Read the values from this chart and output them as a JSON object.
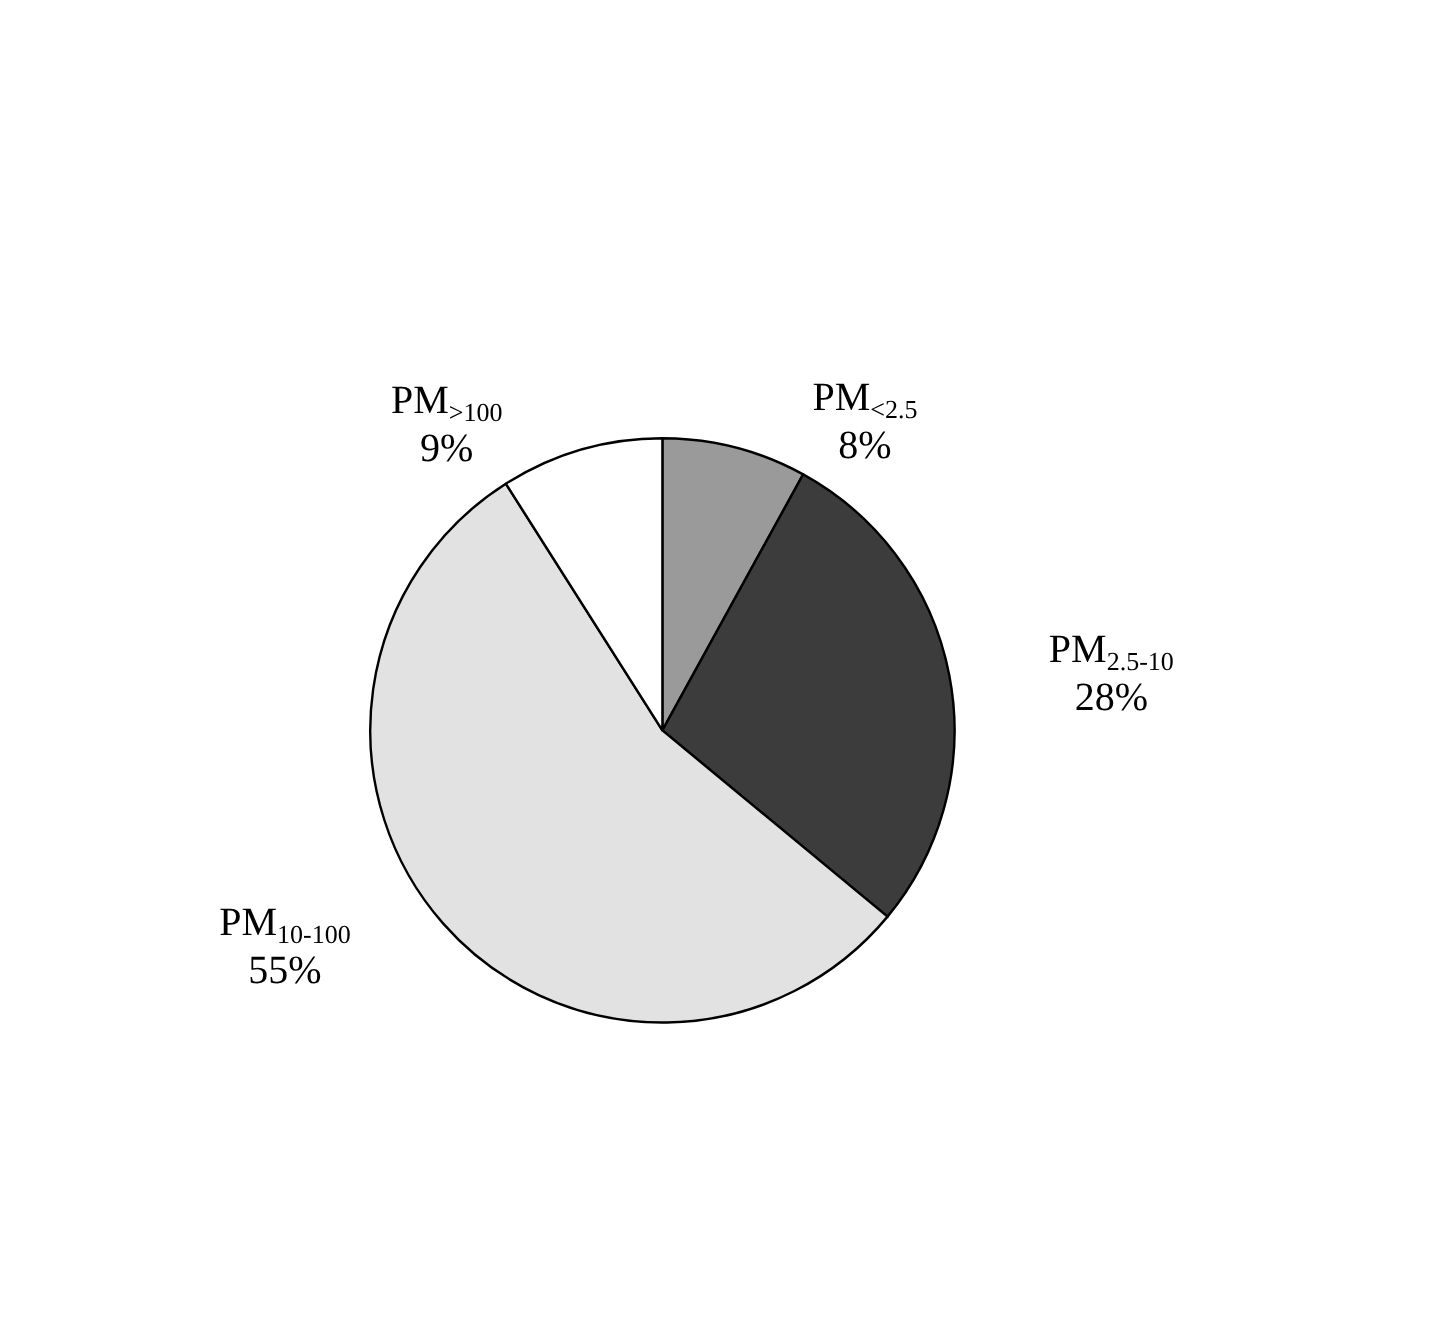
{
  "chart_data": {
    "type": "pie",
    "categories": [
      "PM$_{<2.5}$",
      "PM$_{2.5-10}$",
      "PM$_{10-100}$",
      "PM$_{>100}$"
    ],
    "values": [
      8,
      28,
      55,
      9
    ],
    "value_labels": [
      "8%",
      "28%",
      "55%",
      "9%"
    ],
    "colors": [
      "#9a9a9a",
      "#3c3c3c",
      "#e2e2e2",
      "#ffffff"
    ],
    "legend": false
  }
}
